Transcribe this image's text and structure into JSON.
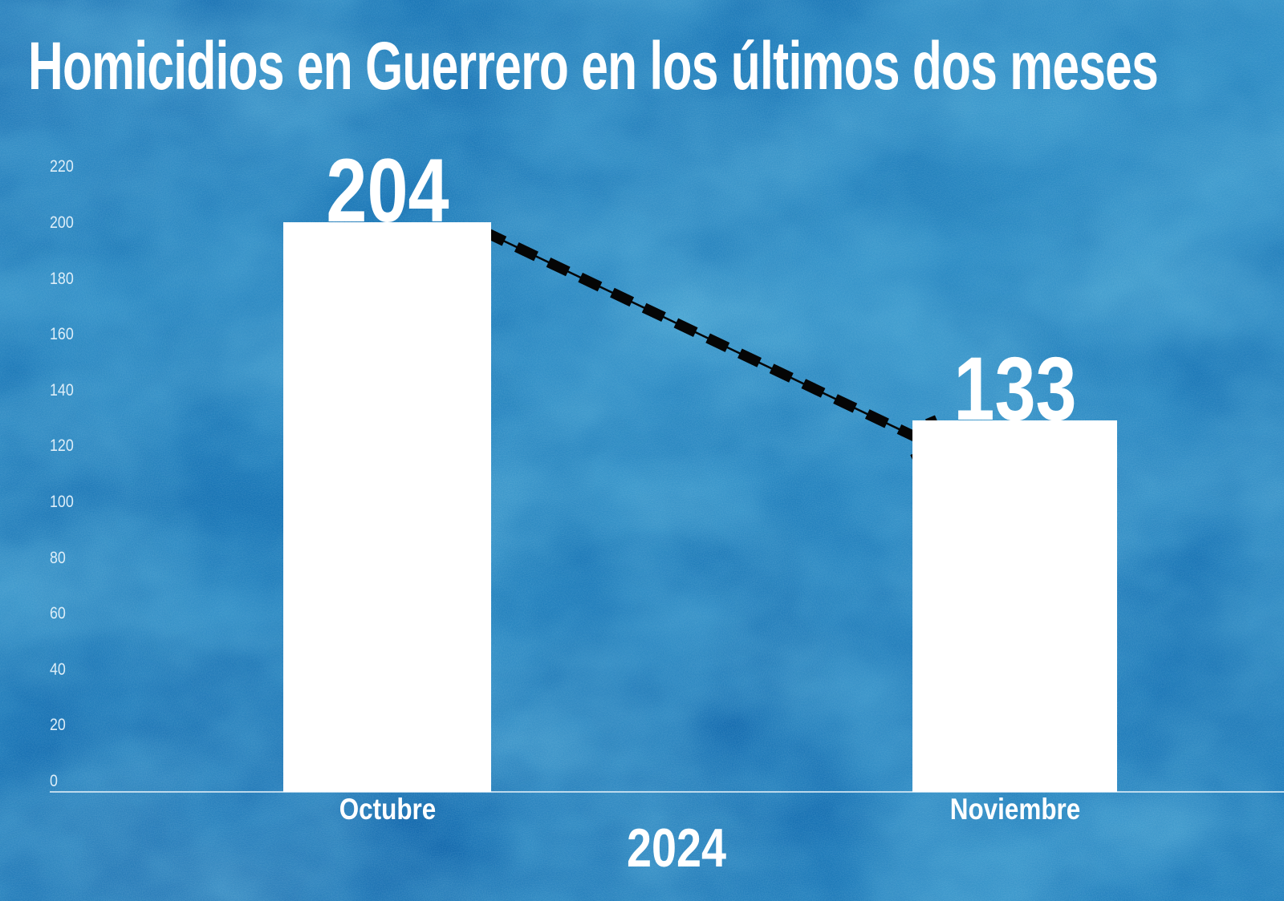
{
  "chart_data": {
    "type": "bar",
    "title": "Homicidios en Guerrero en los últimos dos meses",
    "categories": [
      "Octubre",
      "Noviembre"
    ],
    "values": [
      204,
      133
    ],
    "x_axis_group_label": "2024",
    "xlabel": "2024",
    "ylabel": "",
    "ylim": [
      0,
      220
    ],
    "yticks": [
      0,
      20,
      40,
      60,
      80,
      100,
      120,
      140,
      160,
      180,
      200,
      220
    ],
    "grid": false,
    "legend_position": "none",
    "bar_color": "#ffffff",
    "value_label_color": "#ffffff",
    "category_label_color": "#ffffff",
    "tick_label_color": "#deeef8",
    "background_base_color": "#1470b2",
    "arrow_color": "#000000",
    "arrow_style": "dashed",
    "annotation": "Flecha negra punteada que baja desde la barra de Octubre (204) hacia la barra de Noviembre (133)"
  }
}
